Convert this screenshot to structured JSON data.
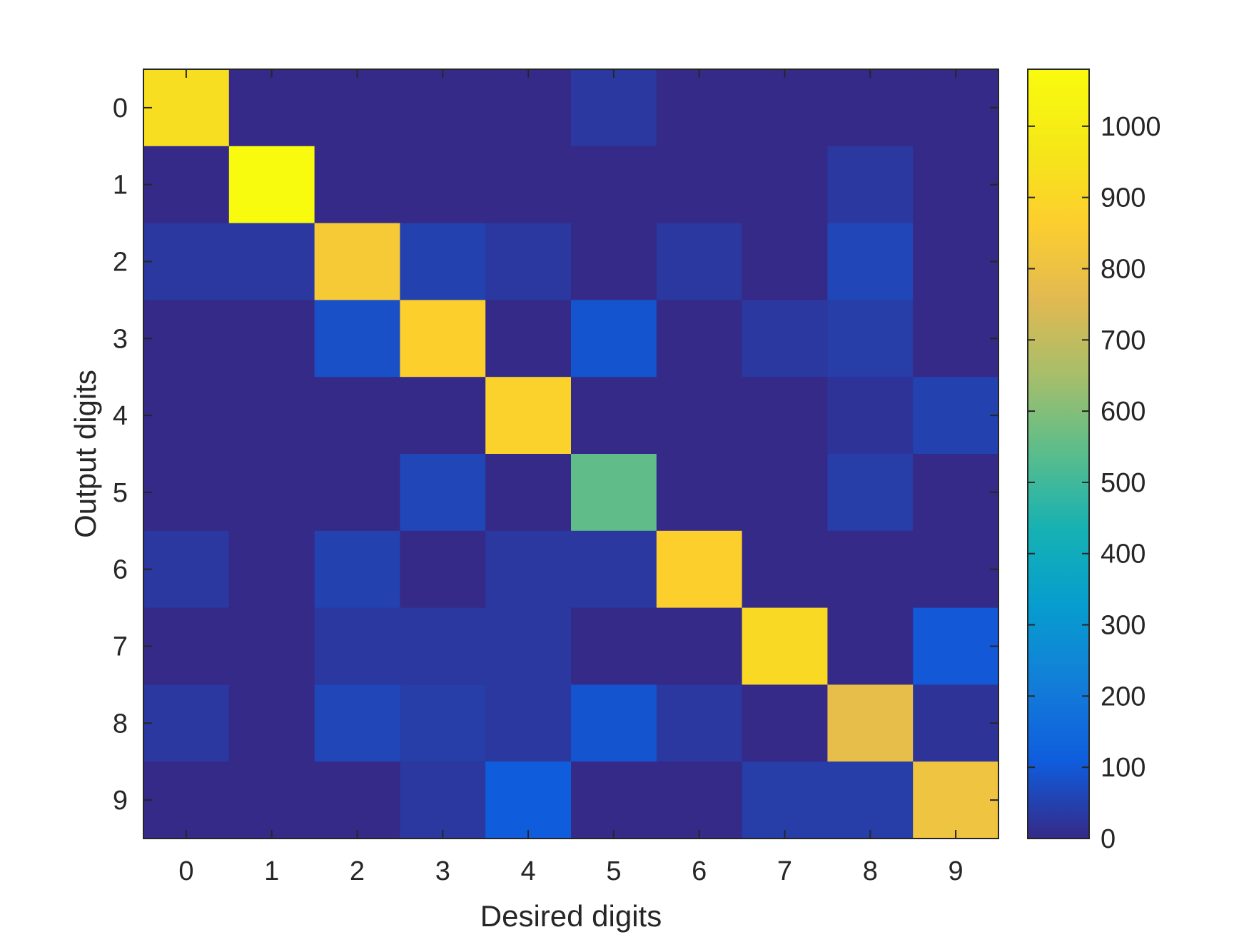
{
  "chart_data": {
    "type": "heatmap",
    "title": "",
    "xlabel": "Desired digits",
    "ylabel": "Output digits",
    "x_categories": [
      "0",
      "1",
      "2",
      "3",
      "4",
      "5",
      "6",
      "7",
      "8",
      "9"
    ],
    "y_categories": [
      "0",
      "1",
      "2",
      "3",
      "4",
      "5",
      "6",
      "7",
      "8",
      "9"
    ],
    "values": [
      [
        930,
        0,
        0,
        0,
        0,
        30,
        0,
        0,
        0,
        0
      ],
      [
        0,
        1080,
        0,
        0,
        0,
        0,
        0,
        0,
        30,
        0
      ],
      [
        30,
        30,
        840,
        50,
        30,
        0,
        30,
        0,
        60,
        0
      ],
      [
        0,
        0,
        80,
        870,
        0,
        90,
        0,
        30,
        40,
        0
      ],
      [
        0,
        0,
        0,
        0,
        880,
        0,
        0,
        0,
        20,
        50
      ],
      [
        0,
        0,
        0,
        60,
        0,
        550,
        0,
        0,
        40,
        0
      ],
      [
        30,
        0,
        50,
        0,
        30,
        30,
        870,
        0,
        0,
        0
      ],
      [
        0,
        0,
        30,
        30,
        30,
        0,
        0,
        910,
        0,
        100
      ],
      [
        30,
        0,
        60,
        40,
        30,
        90,
        30,
        0,
        780,
        20
      ],
      [
        0,
        0,
        0,
        30,
        110,
        0,
        0,
        40,
        40,
        810
      ]
    ],
    "colorbar": {
      "colormap": "parula",
      "range": [
        0,
        1080
      ],
      "ticks": [
        "0",
        "100",
        "200",
        "300",
        "400",
        "500",
        "600",
        "700",
        "800",
        "900",
        "1000"
      ]
    },
    "grid": false,
    "colors": {
      "axis": "#262626",
      "background": "#ffffff"
    }
  }
}
